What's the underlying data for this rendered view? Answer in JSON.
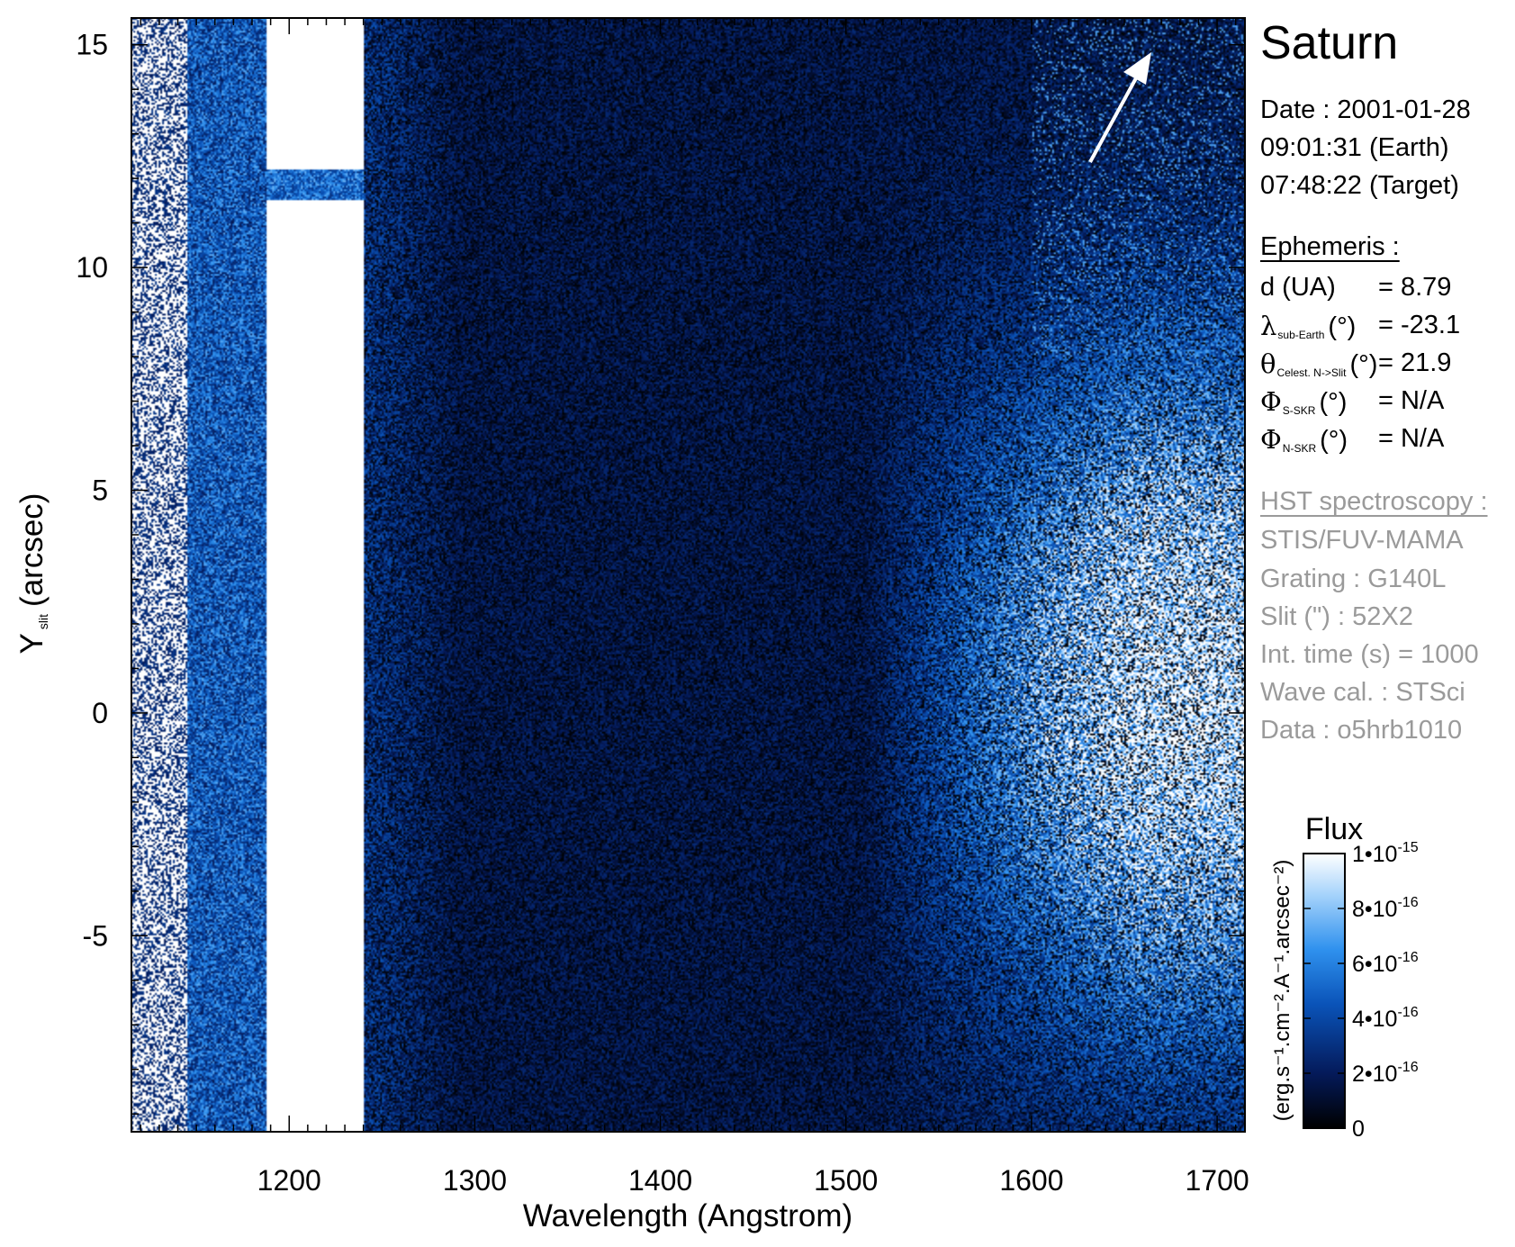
{
  "chart_data": {
    "type": "heatmap",
    "title": "Saturn",
    "xlabel": "Wavelength (Angstrom)",
    "ylabel_main": "Y",
    "ylabel_sub": "slit",
    "ylabel_unit": "(arcsec)",
    "xlim": [
      1115,
      1715
    ],
    "ylim": [
      -9.4,
      15.6
    ],
    "x_ticks": [
      1200,
      1300,
      1400,
      1500,
      1600,
      1700
    ],
    "x_tick_labels": [
      "1200",
      "1300",
      "1400",
      "1500",
      "1600",
      "1700"
    ],
    "y_ticks": [
      -5,
      0,
      5,
      10,
      15
    ],
    "y_tick_labels": [
      "-5",
      "0",
      "5",
      "10",
      "15"
    ],
    "grid": false,
    "saturated_band_x": [
      1188,
      1240
    ],
    "saturated_gap_y": [
      11.5,
      12.2
    ],
    "bright_region_x_start": 1510,
    "colorbar": {
      "title": "Flux",
      "unit_label": "(erg.s⁻¹.cm⁻².A⁻¹.arcsec⁻²)",
      "range": [
        0,
        1e-15
      ],
      "tick_values": [
        0,
        2e-16,
        4e-16,
        6e-16,
        8e-16,
        1e-15
      ],
      "tick_mantissa": [
        "0",
        "2•10",
        "4•10",
        "6•10",
        "8•10",
        "1•10"
      ],
      "tick_exponent": [
        "",
        "-16",
        "-16",
        "-16",
        "-16",
        "-15"
      ],
      "colors": [
        "#000000",
        "#041a5a",
        "#0a53b8",
        "#2f91ee",
        "#a6d3fb",
        "#ffffff"
      ]
    },
    "arrow_annotation": "north-direction"
  },
  "info": {
    "date": "Date : 2001-01-28",
    "time_earth": "09:01:31 (Earth)",
    "time_target": "07:48:22 (Target)",
    "ephemeris_header": "Ephemeris :",
    "distance_label": "d (UA)",
    "distance_value": "= 8.79",
    "lambda_symbol": "λ",
    "lambda_sub": "sub-Earth",
    "lambda_unit": "(°)",
    "lambda_value": "= -23.1",
    "theta_symbol": "θ",
    "theta_sub": "Celest. N->Slit",
    "theta_unit": "(°)",
    "theta_value": "= 21.9",
    "phi_symbol": "Φ",
    "phi_s_sub": "S-SKR",
    "phi_s_unit": "(°)",
    "phi_s_value": "= N/A",
    "phi_n_sub": "N-SKR",
    "phi_n_unit": "(°)",
    "phi_n_value": "= N/A",
    "hst_header": "HST spectroscopy :",
    "instrument": "STIS/FUV-MAMA",
    "grating": "Grating : G140L",
    "slit": "Slit (\") : 52X2",
    "int_time": "Int. time (s) = 1000",
    "wave_cal": "Wave cal. : STSci",
    "data_id": "Data : o5hrb1010"
  },
  "colors": {
    "text": "#000000",
    "muted": "#9a9a9a",
    "arrow": "#ffffff",
    "background": "#ffffff"
  }
}
